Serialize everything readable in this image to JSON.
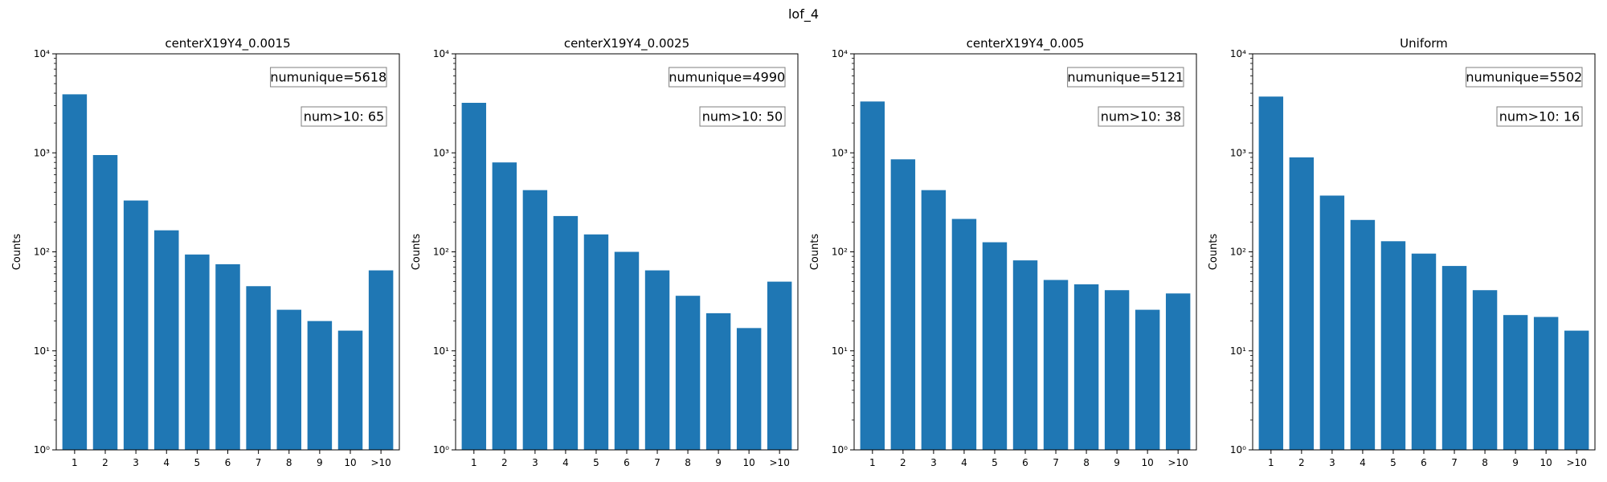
{
  "figure": {
    "title": "lof_4"
  },
  "colors": {
    "bar": "#1f77b4",
    "axis": "#000000",
    "box_edge": "#7f7f7f"
  },
  "chart_data": [
    {
      "type": "bar",
      "title": "centerX19Y4_0.0015",
      "ylabel": "Counts",
      "yscale": "log",
      "ylim": [
        1,
        10000
      ],
      "y_ticks": [
        "10⁰",
        "10¹",
        "10²",
        "10³",
        "10⁴"
      ],
      "categories": [
        "1",
        "2",
        "3",
        "4",
        "5",
        "6",
        "7",
        "8",
        "9",
        "10",
        ">10"
      ],
      "values": [
        3900,
        950,
        330,
        165,
        94,
        75,
        45,
        26,
        20,
        16,
        65
      ],
      "annotations": [
        "numunique=5618",
        "num>10: 65"
      ]
    },
    {
      "type": "bar",
      "title": "centerX19Y4_0.0025",
      "ylabel": "Counts",
      "yscale": "log",
      "ylim": [
        1,
        10000
      ],
      "y_ticks": [
        "10⁰",
        "10¹",
        "10²",
        "10³",
        "10⁴"
      ],
      "categories": [
        "1",
        "2",
        "3",
        "4",
        "5",
        "6",
        "7",
        "8",
        "9",
        "10",
        ">10"
      ],
      "values": [
        3200,
        800,
        420,
        230,
        150,
        100,
        65,
        36,
        24,
        17,
        50
      ],
      "annotations": [
        "numunique=4990",
        "num>10: 50"
      ]
    },
    {
      "type": "bar",
      "title": "centerX19Y4_0.005",
      "ylabel": "Counts",
      "yscale": "log",
      "ylim": [
        1,
        10000
      ],
      "y_ticks": [
        "10⁰",
        "10¹",
        "10²",
        "10³",
        "10⁴"
      ],
      "categories": [
        "1",
        "2",
        "3",
        "4",
        "5",
        "6",
        "7",
        "8",
        "9",
        "10",
        ">10"
      ],
      "values": [
        3300,
        860,
        420,
        215,
        125,
        82,
        52,
        47,
        41,
        26,
        38
      ],
      "annotations": [
        "numunique=5121",
        "num>10: 38"
      ]
    },
    {
      "type": "bar",
      "title": "Uniform",
      "ylabel": "Counts",
      "yscale": "log",
      "ylim": [
        1,
        10000
      ],
      "y_ticks": [
        "10⁰",
        "10¹",
        "10²",
        "10³",
        "10⁴"
      ],
      "categories": [
        "1",
        "2",
        "3",
        "4",
        "5",
        "6",
        "7",
        "8",
        "9",
        "10",
        ">10"
      ],
      "values": [
        3700,
        900,
        370,
        210,
        128,
        96,
        72,
        41,
        23,
        22,
        16
      ],
      "annotations": [
        "numunique=5502",
        "num>10: 16"
      ]
    }
  ]
}
